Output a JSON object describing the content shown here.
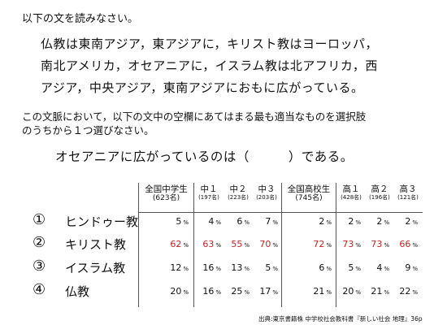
{
  "instruction": "以下の文を読みなさい。",
  "passage": [
    "仏教は東南アジア，東アジアに，キリスト教はヨーロッパ，",
    "南北アメリカ，オセアニアに，イスラム教は北アフリカ，西",
    "アジア，中央アジア，東南アジアにおもに広がっている。"
  ],
  "question": [
    "この文脈において，以下の文中の空欄にあてはまる最も適当なものを選択肢",
    "のうちから１つ選びなさい。"
  ],
  "blank_sentence": "オセアニアに広がっているのは（　　　）である。",
  "table": {
    "headers": [
      {
        "main": "全国中学生",
        "sub": "(623名)"
      },
      {
        "main": "中１",
        "sub": "(197名)"
      },
      {
        "main": "中２",
        "sub": "(223名)"
      },
      {
        "main": "中３",
        "sub": "(203名)"
      },
      {
        "main": "全国高校生",
        "sub": "(745名)"
      },
      {
        "main": "高１",
        "sub": "(428名)"
      },
      {
        "main": "高２",
        "sub": "(196名)"
      },
      {
        "main": "高３",
        "sub": "(121名)"
      }
    ],
    "pct_unit": "%",
    "options": [
      {
        "num": "①",
        "label": "ヒンドゥー教",
        "values": [
          "5",
          "4",
          "6",
          "7",
          "2",
          "2",
          "2",
          "2"
        ],
        "highlight": false
      },
      {
        "num": "②",
        "label": "キリスト教",
        "values": [
          "62",
          "63",
          "55",
          "70",
          "72",
          "73",
          "73",
          "66"
        ],
        "highlight": true
      },
      {
        "num": "③",
        "label": "イスラム教",
        "values": [
          "12",
          "16",
          "13",
          "5",
          "6",
          "5",
          "4",
          "9"
        ],
        "highlight": false
      },
      {
        "num": "④",
        "label": "仏教",
        "values": [
          "20",
          "16",
          "25",
          "17",
          "21",
          "20",
          "21",
          "22"
        ],
        "highlight": false
      }
    ],
    "highlight_color": "#cc1f1f"
  },
  "source": "出典:東京書籍株 中学校社会教科書『新しい社会 地理』36p"
}
